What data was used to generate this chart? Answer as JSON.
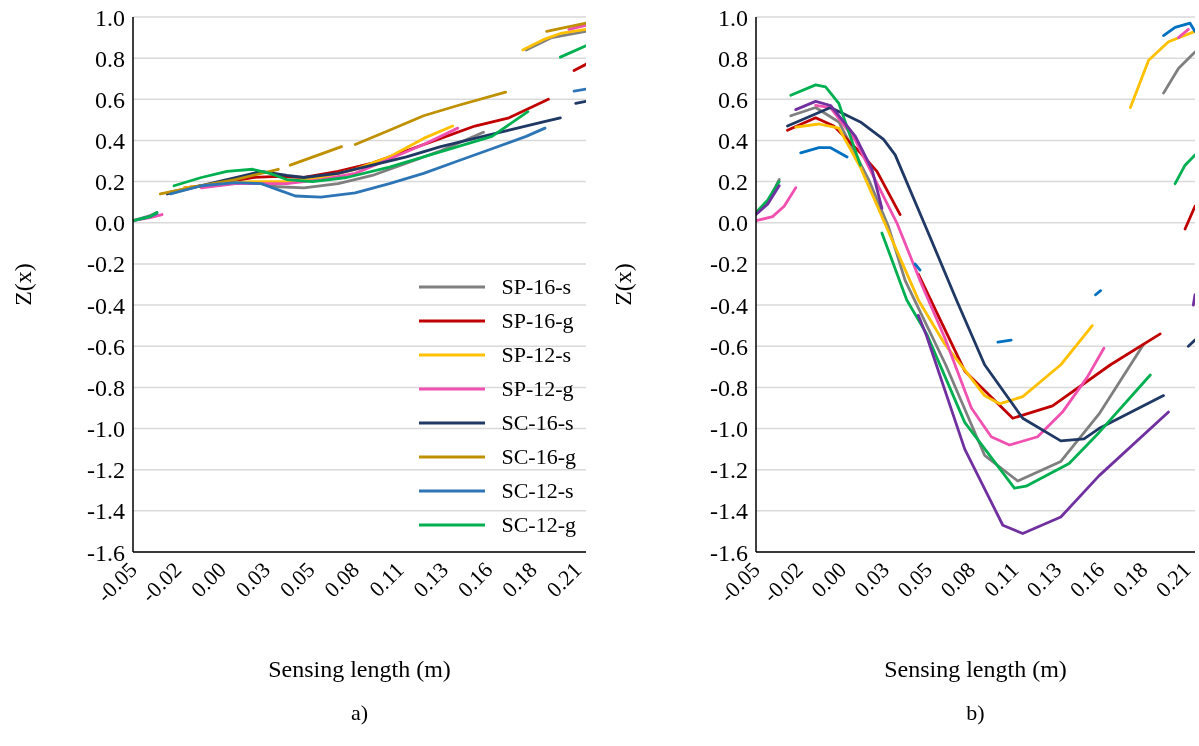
{
  "chart_data": [
    {
      "type": "line",
      "xlabel": "Sensing length (m)",
      "ylabel": "Z(x)",
      "annotations": [
        "a)"
      ],
      "grid": "y",
      "legend": "bottom right",
      "xlim": [
        -0.05,
        0.215
      ],
      "xticks": [
        {
          "value": -0.05,
          "label": "-0.05"
        },
        {
          "value": -0.024,
          "label": "-0.02"
        },
        {
          "value": 0.002,
          "label": "0.00"
        },
        {
          "value": 0.028,
          "label": "0.03"
        },
        {
          "value": 0.054,
          "label": "0.05"
        },
        {
          "value": 0.08,
          "label": "0.08"
        },
        {
          "value": 0.106,
          "label": "0.11"
        },
        {
          "value": 0.132,
          "label": "0.13"
        },
        {
          "value": 0.158,
          "label": "0.16"
        },
        {
          "value": 0.184,
          "label": "0.18"
        },
        {
          "value": 0.21,
          "label": "0.21"
        }
      ],
      "ylim": [
        -1.6,
        1.0
      ],
      "yticks": [
        -1.6,
        -1.4,
        -1.2,
        {
          "value": -1.0,
          "label": "-1.0"
        },
        -0.8,
        -0.6,
        -0.4,
        -0.2,
        {
          "value": 0,
          "label": "0.0"
        },
        0.2,
        0.4,
        0.6,
        0.8,
        {
          "value": 1.0,
          "label": "1.0"
        }
      ],
      "series": [
        {
          "name": "SP-16-s",
          "color": "#7f7f7f",
          "x": [
            -0.05,
            -0.04,
            -0.036,
            -0.032,
            -0.028,
            -0.01,
            0.01,
            0.025,
            0.035,
            0.05,
            0.07,
            0.09,
            0.11,
            0.13,
            0.155,
            0.167,
            0.18,
            0.195,
            0.215
          ],
          "values": [
            0.01,
            0.035,
            0.05,
            null,
            0.15,
            0.18,
            0.195,
            0.19,
            0.175,
            0.17,
            0.19,
            0.23,
            0.29,
            0.35,
            0.44,
            null,
            0.84,
            0.9,
            0.93
          ]
        },
        {
          "name": "SP-16-g",
          "color": "#c00000",
          "x": [
            -0.02,
            0.0,
            0.02,
            0.035,
            0.05,
            0.07,
            0.09,
            0.11,
            0.13,
            0.15,
            0.17,
            0.193,
            0.2,
            0.208,
            0.215
          ],
          "values": [
            0.17,
            0.19,
            0.22,
            0.225,
            0.22,
            0.25,
            0.29,
            0.35,
            0.41,
            0.47,
            0.51,
            0.6,
            null,
            0.74,
            0.77
          ]
        },
        {
          "name": "SP-12-s",
          "color": "#ffc000",
          "x": [
            -0.02,
            0.0,
            0.02,
            0.04,
            0.06,
            0.08,
            0.1,
            0.12,
            0.137,
            0.157,
            0.178,
            0.19,
            0.2,
            0.215
          ],
          "values": [
            0.17,
            0.19,
            0.2,
            0.2,
            0.22,
            0.26,
            0.32,
            0.41,
            0.47,
            null,
            0.84,
            0.89,
            0.92,
            0.94
          ]
        },
        {
          "name": "SP-12-g",
          "color": "#f050b0",
          "x": [
            -0.05,
            -0.04,
            -0.033,
            -0.029,
            -0.025,
            -0.01,
            0.01,
            0.025,
            0.04,
            0.06,
            0.08,
            0.1,
            0.12,
            0.14,
            0.172,
            0.205,
            0.215
          ],
          "values": [
            0.01,
            0.025,
            0.04,
            null,
            null,
            0.17,
            0.19,
            0.19,
            0.19,
            0.21,
            0.24,
            0.31,
            0.38,
            0.46,
            null,
            0.94,
            0.96
          ]
        },
        {
          "name": "SC-16-s",
          "color": "#203864",
          "x": [
            -0.03,
            -0.01,
            0.01,
            0.025,
            0.04,
            0.05,
            0.07,
            0.09,
            0.11,
            0.13,
            0.15,
            0.17,
            0.19,
            0.2,
            0.205,
            0.209,
            0.215
          ],
          "values": [
            0.14,
            0.18,
            0.22,
            0.25,
            0.23,
            0.22,
            0.24,
            0.28,
            0.32,
            0.37,
            0.41,
            0.45,
            0.49,
            0.51,
            null,
            0.58,
            0.59
          ]
        },
        {
          "name": "SC-16-g",
          "color": "#bf9000",
          "x": [
            -0.034,
            -0.01,
            0.01,
            0.035,
            0.0385,
            0.042,
            0.072,
            0.076,
            0.08,
            0.1,
            0.12,
            0.14,
            0.168,
            0.18,
            0.192,
            0.215
          ],
          "values": [
            0.14,
            0.18,
            0.21,
            0.26,
            null,
            0.28,
            0.37,
            null,
            0.38,
            0.45,
            0.52,
            0.57,
            0.635,
            null,
            0.93,
            0.97
          ]
        },
        {
          "name": "SC-12-s",
          "color": "#2e75b6",
          "x": [
            -0.05,
            -0.04,
            -0.036,
            -0.032,
            -0.028,
            -0.01,
            0.01,
            0.025,
            0.035,
            0.045,
            0.06,
            0.08,
            0.1,
            0.12,
            0.14,
            0.16,
            0.18,
            0.191,
            0.2,
            0.208,
            0.215
          ],
          "values": [
            0.01,
            0.03,
            0.045,
            null,
            0.14,
            0.18,
            0.195,
            0.19,
            0.16,
            0.13,
            0.125,
            0.145,
            0.19,
            0.24,
            0.3,
            0.36,
            0.42,
            0.46,
            null,
            0.64,
            0.65
          ]
        },
        {
          "name": "SC-12-g",
          "color": "#00b050",
          "x": [
            -0.05,
            -0.04,
            -0.036,
            -0.031,
            -0.026,
            -0.01,
            0.005,
            0.02,
            0.03,
            0.04,
            0.055,
            0.075,
            0.1,
            0.12,
            0.14,
            0.16,
            0.181,
            0.19,
            0.2,
            0.215
          ],
          "values": [
            0.01,
            0.03,
            0.05,
            null,
            0.18,
            0.22,
            0.25,
            0.26,
            0.24,
            0.21,
            0.2,
            0.22,
            0.27,
            0.32,
            0.37,
            0.42,
            0.54,
            null,
            0.805,
            0.86
          ]
        }
      ]
    },
    {
      "type": "line",
      "xlabel": "Sensing length (m)",
      "ylabel": "Z(x)",
      "annotations": [
        "b)"
      ],
      "grid": "y",
      "xlim": [
        -0.05,
        0.215
      ],
      "xticks": [
        {
          "value": -0.05,
          "label": "-0.05"
        },
        {
          "value": -0.024,
          "label": "-0.02"
        },
        {
          "value": 0.002,
          "label": "0.00"
        },
        {
          "value": 0.028,
          "label": "0.03"
        },
        {
          "value": 0.054,
          "label": "0.05"
        },
        {
          "value": 0.08,
          "label": "0.08"
        },
        {
          "value": 0.106,
          "label": "0.11"
        },
        {
          "value": 0.132,
          "label": "0.13"
        },
        {
          "value": 0.158,
          "label": "0.16"
        },
        {
          "value": 0.184,
          "label": "0.18"
        },
        {
          "value": 0.21,
          "label": "0.21"
        }
      ],
      "ylim": [
        -1.6,
        1.0
      ],
      "yticks": [
        -1.6,
        -1.4,
        -1.2,
        {
          "value": -1.0,
          "label": "-1.0"
        },
        -0.8,
        -0.6,
        -0.4,
        -0.2,
        {
          "value": 0,
          "label": "0.0"
        },
        0.2,
        0.4,
        0.6,
        0.8,
        {
          "value": 1.0,
          "label": "1.0"
        }
      ],
      "series": [
        {
          "color": "#7f7f7f",
          "x": [
            -0.05,
            -0.043,
            -0.036,
            -0.032,
            -0.029,
            -0.014,
            0.0,
            0.018,
            0.03,
            0.04,
            0.0645,
            0.088,
            0.108,
            0.134,
            0.157,
            0.184,
            0.19,
            0.196,
            0.205,
            0.215
          ],
          "values": [
            0.05,
            0.1,
            0.21,
            null,
            0.52,
            0.56,
            0.49,
            0.21,
            -0.02,
            -0.28,
            -0.69,
            -1.13,
            -1.255,
            -1.16,
            -0.93,
            -0.59,
            null,
            0.63,
            0.75,
            0.83
          ]
        },
        {
          "color": "#c00000",
          "x": [
            -0.031,
            -0.014,
            -0.003,
            0.013,
            0.023,
            0.037,
            0.042,
            0.048,
            0.076,
            0.105,
            0.129,
            0.164,
            0.194,
            0.2,
            0.209,
            0.215
          ],
          "values": [
            0.45,
            0.51,
            0.47,
            0.34,
            0.25,
            0.04,
            null,
            -0.25,
            -0.72,
            -0.95,
            -0.89,
            -0.69,
            -0.54,
            null,
            -0.03,
            0.08
          ]
        },
        {
          "color": "#ffc000",
          "x": [
            -0.026,
            -0.012,
            0.0,
            0.013,
            0.048,
            0.064,
            0.088,
            0.097,
            0.111,
            0.134,
            0.153,
            0.165,
            0.176,
            0.187,
            0.199,
            0.215
          ],
          "values": [
            0.465,
            0.48,
            0.46,
            0.27,
            -0.375,
            -0.59,
            -0.84,
            -0.88,
            -0.845,
            -0.69,
            -0.5,
            null,
            0.56,
            0.79,
            0.88,
            0.93
          ]
        },
        {
          "color": "#f050b0",
          "x": [
            -0.05,
            -0.04,
            -0.033,
            -0.026,
            -0.02,
            -0.014,
            -0.005,
            0.01,
            0.025,
            0.035,
            0.05,
            0.064,
            0.08,
            0.092,
            0.103,
            0.12,
            0.135,
            0.15,
            0.16,
            0.18,
            0.205,
            0.211
          ],
          "values": [
            0.01,
            0.03,
            0.08,
            0.17,
            null,
            0.57,
            0.56,
            0.4,
            0.16,
            0.0,
            -0.3,
            -0.56,
            -0.9,
            -1.04,
            -1.08,
            -1.04,
            -0.92,
            -0.75,
            -0.61,
            null,
            0.9,
            0.94
          ]
        },
        {
          "color": "#203864",
          "x": [
            -0.031,
            -0.005,
            0.013,
            0.027,
            0.034,
            0.053,
            0.071,
            0.088,
            0.111,
            0.134,
            0.148,
            0.157,
            0.196,
            0.203,
            0.211,
            0.215
          ],
          "values": [
            0.47,
            0.56,
            0.49,
            0.405,
            0.33,
            -0.03,
            -0.375,
            -0.69,
            -0.95,
            -1.06,
            -1.05,
            -1.0,
            -0.84,
            null,
            -0.6,
            -0.57
          ]
        },
        {
          "color": "#0070c0",
          "x": [
            -0.023,
            -0.012,
            -0.005,
            0.005,
            0.025,
            0.046,
            0.049,
            0.07,
            0.096,
            0.104,
            0.13,
            0.155,
            0.158,
            0.18,
            0.196,
            0.203,
            0.212,
            0.215
          ],
          "values": [
            0.34,
            0.365,
            0.365,
            0.32,
            null,
            -0.2,
            -0.23,
            null,
            -0.58,
            -0.57,
            null,
            -0.35,
            -0.33,
            null,
            0.91,
            0.95,
            0.97,
            0.93
          ]
        },
        {
          "color": "#00b050",
          "x": [
            -0.05,
            -0.043,
            -0.036,
            -0.032,
            -0.029,
            -0.014,
            -0.008,
            0.0,
            0.013,
            0.02,
            0.026,
            0.041,
            0.053,
            0.076,
            0.106,
            0.113,
            0.139,
            0.157,
            0.188,
            0.195,
            0.203,
            0.209,
            0.215
          ],
          "values": [
            0.05,
            0.11,
            0.2,
            null,
            0.62,
            0.67,
            0.66,
            0.58,
            0.28,
            null,
            -0.05,
            -0.375,
            -0.54,
            -0.97,
            -1.29,
            -1.28,
            -1.17,
            -1.02,
            -0.74,
            null,
            0.19,
            0.28,
            0.33
          ]
        },
        {
          "color": "#7030a0",
          "x": [
            -0.05,
            -0.043,
            -0.036,
            -0.031,
            -0.026,
            -0.014,
            -0.005,
            0.01,
            0.02,
            0.026,
            0.037,
            0.048,
            0.053,
            0.076,
            0.099,
            0.111,
            0.134,
            0.157,
            0.199,
            0.207,
            0.214,
            0.215
          ],
          "values": [
            0.04,
            0.09,
            0.18,
            null,
            0.55,
            0.59,
            0.57,
            0.42,
            0.26,
            0.07,
            null,
            -0.45,
            -0.55,
            -1.1,
            -1.47,
            -1.51,
            -1.43,
            -1.23,
            -0.92,
            null,
            -0.4,
            -0.35
          ]
        }
      ]
    }
  ]
}
